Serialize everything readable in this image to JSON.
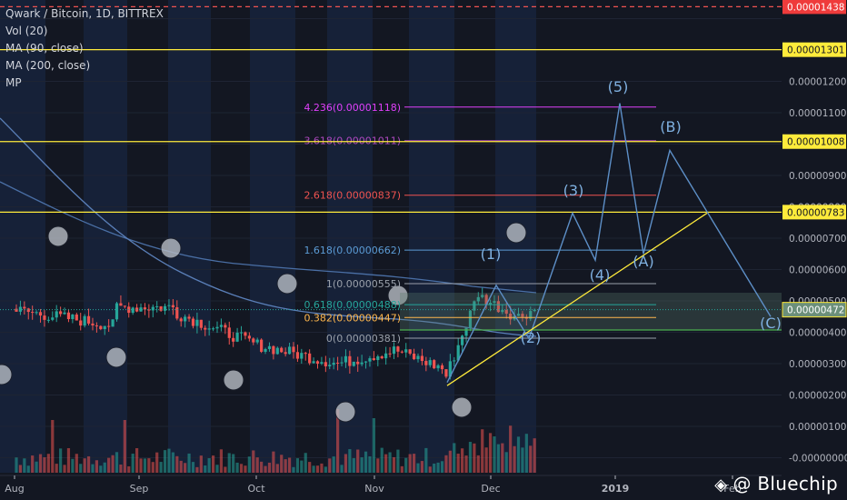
{
  "legend": {
    "symbol": "Qwark / Bitcoin, 1D, BITTREX",
    "vol": "Vol (20)",
    "ma90": "MA (90, close)",
    "ma200": "MA (200, close)",
    "mp": "MP"
  },
  "watermark": {
    "logo_icon": "binance-diamond-icon",
    "text": "@ Bluechip"
  },
  "colors": {
    "background": "#131722",
    "up": "#26a69a",
    "down": "#ef5350",
    "axis_text": "#b2b5be",
    "yellow": "#ffeb3b",
    "fib_pink": "#e040fb",
    "fib_purple": "#ab47bc",
    "fib_red": "#ef5350",
    "fib_blue": "#5b9bd5",
    "fib_green": "#4caf50",
    "fib_orange": "#ffb74d",
    "red_dash": "#ef5350",
    "wave": "#5d8fc7",
    "ma": "#4a6fa5"
  },
  "chart_data": {
    "type": "candlestick",
    "x_axis": {
      "ticks": [
        "Aug",
        "Sep",
        "Oct",
        "Nov",
        "Dec",
        "2019",
        "Feb"
      ]
    },
    "y_axis": {
      "range": [
        -2e-07,
        1.47e-05
      ],
      "ticks": [
        "0.00001200",
        "0.00001100",
        "0.00001000",
        "0.00000900",
        "0.00000800",
        "0.00000700",
        "0.00000600",
        "0.00000500",
        "0.00000400",
        "0.00000300",
        "0.00000200",
        "0.00000100",
        "-0.00000000"
      ]
    },
    "price_labels": [
      {
        "value": 1.438e-05,
        "label": "0.00001438",
        "style": "red"
      },
      {
        "value": 1.301e-05,
        "label": "0.00001301",
        "style": "yellow"
      },
      {
        "value": 1.008e-05,
        "label": "0.00001008",
        "style": "yellow"
      },
      {
        "value": 7.83e-06,
        "label": "0.00000783",
        "style": "yellow"
      },
      {
        "value": 4.72e-06,
        "label": "0.00000472",
        "style": "teal"
      }
    ],
    "horizontal_lines": [
      {
        "value": 1.438e-05,
        "style": "red-dashed"
      },
      {
        "value": 1.301e-05,
        "style": "yellow"
      },
      {
        "value": 1.008e-05,
        "style": "yellow"
      },
      {
        "value": 7.83e-06,
        "style": "yellow"
      }
    ],
    "fib_levels": [
      {
        "value": 1.118e-05,
        "label": "4.236(0.00001118)",
        "color": "#e040fb"
      },
      {
        "value": 1.011e-05,
        "label": "3.618(0.00001011)",
        "color": "#ab47bc"
      },
      {
        "value": 8.37e-06,
        "label": "2.618(0.00000837)",
        "color": "#ef5350"
      },
      {
        "value": 6.62e-06,
        "label": "1.618(0.00000662)",
        "color": "#5b9bd5"
      },
      {
        "value": 5.55e-06,
        "label": "1(0.00000555)",
        "color": "#9aa0aa"
      },
      {
        "value": 4.88e-06,
        "label": "0.618(0.00000488)",
        "color": "#26a69a"
      },
      {
        "value": 4.47e-06,
        "label": "0.382(0.00000447)",
        "color": "#ffb74d"
      },
      {
        "value": 3.81e-06,
        "label": "0(0.00000381)",
        "color": "#9aa0aa"
      }
    ],
    "wave_labels": [
      "(1)",
      "(2)",
      "(3)",
      "(4)",
      "(5)",
      "(A)",
      "(B)",
      "(C)"
    ],
    "wave_path": [
      2.4e-06,
      5.5e-06,
      3.8e-06,
      7.8e-06,
      6.3e-06,
      1.13e-05,
      6.5e-06,
      9.8e-06,
      4.5e-06
    ],
    "trendline": {
      "from": 2.3e-06,
      "to": 7.8e-06
    },
    "current_price": 4.72e-06
  }
}
